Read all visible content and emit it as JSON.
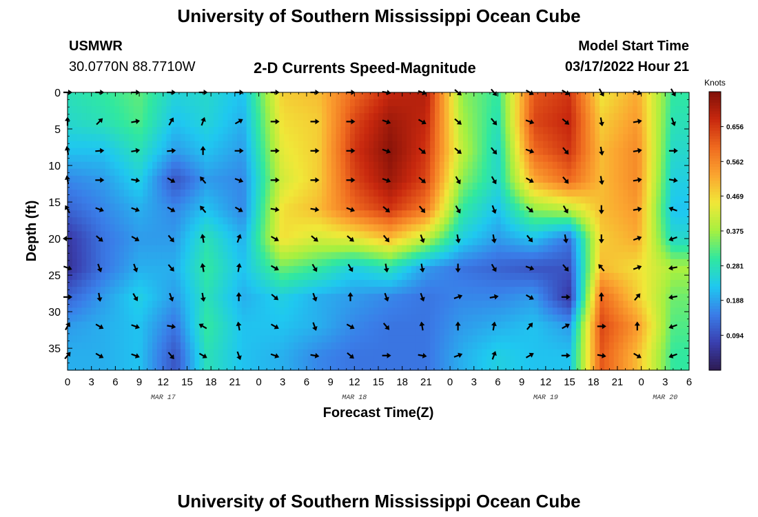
{
  "title": "University of Southern Mississippi Ocean Cube",
  "station": {
    "name": "USMWR",
    "coords": "30.0770N  88.7710W"
  },
  "plot_title": "2-D Currents Speed-Magnitude",
  "model_start": {
    "label": "Model Start Time",
    "value": "03/17/2022 Hour 21"
  },
  "footer_title": "University of Southern Mississippi Ocean Cube",
  "chart_data": {
    "type": "heatmap",
    "title": "2-D Currents Speed-Magnitude",
    "xlabel": "Forecast Time(Z)",
    "ylabel": "Depth (ft)",
    "x_range_hours": [
      0,
      78
    ],
    "y_range_ft": [
      0,
      38
    ],
    "x_ticks": [
      {
        "h": 0,
        "label": "0"
      },
      {
        "h": 3,
        "label": "3"
      },
      {
        "h": 6,
        "label": "6"
      },
      {
        "h": 9,
        "label": "9"
      },
      {
        "h": 12,
        "label": "12"
      },
      {
        "h": 15,
        "label": "15"
      },
      {
        "h": 18,
        "label": "18"
      },
      {
        "h": 21,
        "label": "21"
      },
      {
        "h": 24,
        "label": "0"
      },
      {
        "h": 27,
        "label": "3"
      },
      {
        "h": 30,
        "label": "6"
      },
      {
        "h": 33,
        "label": "9"
      },
      {
        "h": 36,
        "label": "12"
      },
      {
        "h": 39,
        "label": "15"
      },
      {
        "h": 42,
        "label": "18"
      },
      {
        "h": 45,
        "label": "21"
      },
      {
        "h": 48,
        "label": "0"
      },
      {
        "h": 51,
        "label": "3"
      },
      {
        "h": 54,
        "label": "6"
      },
      {
        "h": 57,
        "label": "9"
      },
      {
        "h": 60,
        "label": "12"
      },
      {
        "h": 63,
        "label": "15"
      },
      {
        "h": 66,
        "label": "18"
      },
      {
        "h": 69,
        "label": "21"
      },
      {
        "h": 72,
        "label": "0"
      },
      {
        "h": 75,
        "label": "3"
      },
      {
        "h": 78,
        "label": "6"
      }
    ],
    "y_ticks": [
      {
        "d": 0,
        "label": "0"
      },
      {
        "d": 5,
        "label": "5"
      },
      {
        "d": 10,
        "label": "10"
      },
      {
        "d": 15,
        "label": "15"
      },
      {
        "d": 20,
        "label": "20"
      },
      {
        "d": 25,
        "label": "25"
      },
      {
        "d": 30,
        "label": "30"
      },
      {
        "d": 35,
        "label": "35"
      }
    ],
    "date_labels": [
      {
        "h": 12,
        "label": "MAR 17"
      },
      {
        "h": 36,
        "label": "MAR 18"
      },
      {
        "h": 60,
        "label": "MAR 19"
      },
      {
        "h": 75,
        "label": "MAR 20"
      }
    ],
    "colorbar": {
      "label": "Knots",
      "min": 0.0,
      "max": 0.75,
      "ticks": [
        "0.094",
        "0.188",
        "0.281",
        "0.375",
        "0.469",
        "0.562",
        "0.656"
      ],
      "colors": [
        "#2d1a52",
        "#3a40b0",
        "#3a7de8",
        "#1fc8f0",
        "#30e8a0",
        "#a6f040",
        "#f0e838",
        "#fba530",
        "#ef6a1f",
        "#c8280e",
        "#801008"
      ]
    },
    "depths_ft": [
      0,
      4,
      8,
      12,
      16,
      20,
      24,
      28,
      32,
      36
    ],
    "hours": [
      0,
      4.5,
      9,
      13.5,
      17.5,
      22,
      27,
      31.5,
      36,
      40.5,
      45,
      49.5,
      54,
      58.5,
      63,
      67,
      71.5,
      76
    ],
    "speed_knots": [
      [
        0.28,
        0.3,
        0.33,
        0.25,
        0.26,
        0.22,
        0.48,
        0.5,
        0.6,
        0.68,
        0.7,
        0.36,
        0.3,
        0.62,
        0.66,
        0.45,
        0.52,
        0.3
      ],
      [
        0.26,
        0.28,
        0.32,
        0.22,
        0.25,
        0.2,
        0.46,
        0.48,
        0.64,
        0.72,
        0.68,
        0.38,
        0.28,
        0.64,
        0.68,
        0.48,
        0.54,
        0.28
      ],
      [
        0.22,
        0.22,
        0.28,
        0.18,
        0.22,
        0.18,
        0.44,
        0.48,
        0.66,
        0.74,
        0.66,
        0.4,
        0.26,
        0.6,
        0.66,
        0.5,
        0.56,
        0.26
      ],
      [
        0.16,
        0.18,
        0.24,
        0.1,
        0.18,
        0.16,
        0.42,
        0.48,
        0.64,
        0.72,
        0.64,
        0.36,
        0.26,
        0.52,
        0.6,
        0.5,
        0.56,
        0.24
      ],
      [
        0.12,
        0.16,
        0.2,
        0.16,
        0.22,
        0.16,
        0.46,
        0.5,
        0.6,
        0.66,
        0.58,
        0.3,
        0.22,
        0.36,
        0.4,
        0.5,
        0.54,
        0.22
      ],
      [
        0.06,
        0.14,
        0.18,
        0.18,
        0.28,
        0.2,
        0.46,
        0.42,
        0.44,
        0.5,
        0.4,
        0.24,
        0.18,
        0.22,
        0.14,
        0.48,
        0.52,
        0.26
      ],
      [
        0.05,
        0.14,
        0.2,
        0.2,
        0.3,
        0.22,
        0.34,
        0.3,
        0.24,
        0.28,
        0.18,
        0.14,
        0.12,
        0.1,
        0.1,
        0.5,
        0.46,
        0.38
      ],
      [
        0.12,
        0.18,
        0.24,
        0.18,
        0.28,
        0.2,
        0.24,
        0.2,
        0.18,
        0.16,
        0.14,
        0.16,
        0.16,
        0.18,
        0.06,
        0.6,
        0.48,
        0.34
      ],
      [
        0.18,
        0.2,
        0.22,
        0.14,
        0.3,
        0.22,
        0.22,
        0.2,
        0.16,
        0.14,
        0.14,
        0.18,
        0.2,
        0.22,
        0.18,
        0.64,
        0.54,
        0.32
      ],
      [
        0.2,
        0.2,
        0.22,
        0.1,
        0.28,
        0.22,
        0.2,
        0.16,
        0.14,
        0.14,
        0.14,
        0.2,
        0.24,
        0.22,
        0.22,
        0.62,
        0.5,
        0.3
      ]
    ],
    "vector_hours": [
      0,
      4,
      8.5,
      13,
      17,
      21.5,
      26,
      31,
      35.5,
      40,
      44.5,
      49,
      53.5,
      58,
      62.5,
      67,
      71.5,
      76
    ],
    "vector_depths_ft": [
      0,
      4,
      8,
      12,
      16,
      20,
      24,
      28,
      32,
      36
    ],
    "vector_dir_deg": [
      [
        90,
        90,
        90,
        90,
        90,
        90,
        90,
        90,
        90,
        100,
        110,
        130,
        140,
        120,
        120,
        150,
        110,
        150
      ],
      [
        0,
        45,
        80,
        30,
        20,
        60,
        90,
        90,
        90,
        110,
        120,
        130,
        140,
        110,
        130,
        170,
        80,
        160
      ],
      [
        350,
        85,
        80,
        85,
        0,
        90,
        90,
        90,
        90,
        110,
        130,
        130,
        140,
        110,
        140,
        170,
        80,
        90
      ],
      [
        350,
        90,
        100,
        120,
        320,
        110,
        90,
        90,
        90,
        110,
        130,
        150,
        150,
        120,
        140,
        170,
        80,
        100
      ],
      [
        330,
        110,
        110,
        120,
        320,
        120,
        100,
        100,
        110,
        130,
        140,
        150,
        160,
        130,
        150,
        180,
        80,
        290
      ],
      [
        270,
        130,
        120,
        140,
        350,
        20,
        120,
        130,
        130,
        140,
        160,
        170,
        170,
        140,
        170,
        180,
        70,
        250
      ],
      [
        110,
        160,
        160,
        140,
        350,
        10,
        120,
        150,
        150,
        170,
        170,
        180,
        150,
        110,
        140,
        320,
        70,
        260
      ],
      [
        90,
        170,
        150,
        160,
        170,
        0,
        130,
        160,
        0,
        160,
        160,
        70,
        80,
        120,
        90,
        0,
        40,
        260
      ],
      [
        30,
        120,
        110,
        100,
        300,
        350,
        120,
        160,
        120,
        140,
        350,
        0,
        10,
        40,
        60,
        90,
        0,
        250
      ],
      [
        40,
        120,
        110,
        140,
        120,
        160,
        110,
        100,
        130,
        90,
        100,
        70,
        20,
        60,
        90,
        100,
        120,
        250
      ]
    ]
  }
}
